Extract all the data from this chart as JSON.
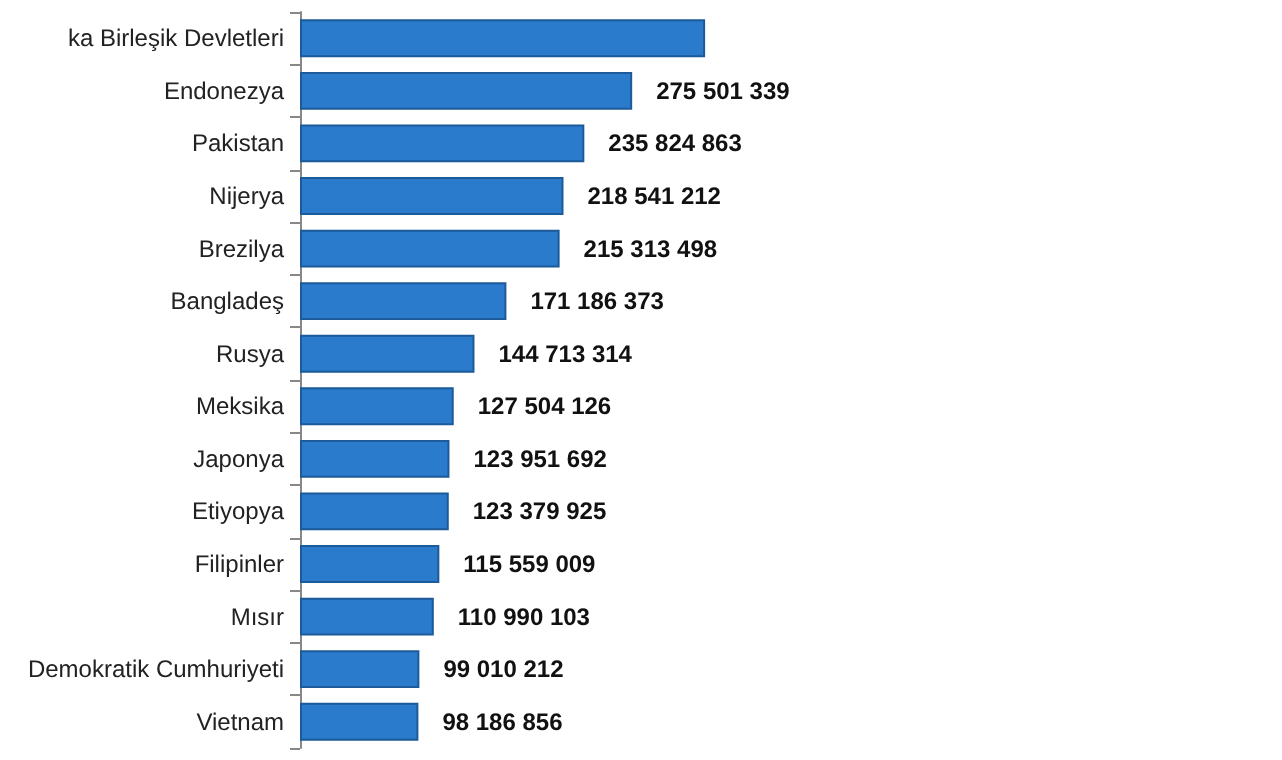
{
  "chart_data": {
    "type": "bar",
    "orientation": "horizontal",
    "categories": [
      "ka Birleşik Devletleri",
      "Endonezya",
      "Pakistan",
      "Nijerya",
      "Brezilya",
      "Bangladeş",
      "Rusya",
      "Meksika",
      "Japonya",
      "Etiyopya",
      "Filipinler",
      "Mısır",
      "Demokratik Cumhuriyeti",
      "Vietnam"
    ],
    "values": [
      336000000,
      275501339,
      235824863,
      218541212,
      215313498,
      171186373,
      144713314,
      127504126,
      123951692,
      123379925,
      115559009,
      110990103,
      99010212,
      98186856
    ],
    "value_labels": [
      null,
      "275 501 339",
      "235 824 863",
      "218 541 212",
      "215 313 498",
      "171 186 373",
      "144 713 314",
      "127 504 126",
      "123 951 692",
      "123 379 925",
      "115 559 009",
      "110 990 103",
      "99 010 212",
      "98 186 856"
    ],
    "color": "#2b7bcc"
  }
}
